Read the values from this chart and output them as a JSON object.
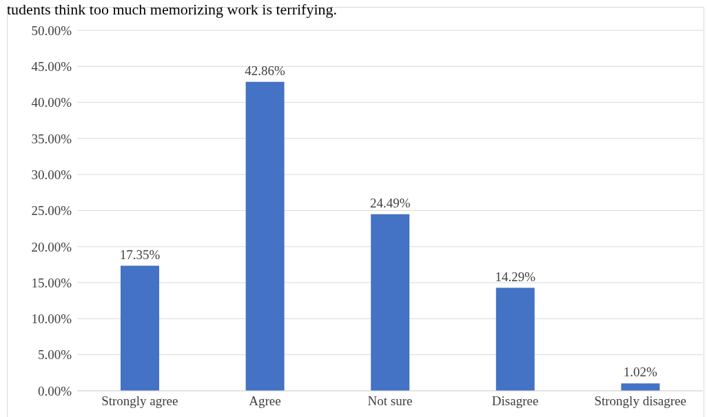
{
  "chart_data": {
    "type": "bar",
    "title": "tudents think too much memorizing work is terrifying.",
    "categories": [
      "Strongly agree",
      "Agree",
      "Not sure",
      "Disagree",
      "Strongly disagree"
    ],
    "values": [
      17.35,
      42.86,
      24.49,
      14.29,
      1.02
    ],
    "value_labels": [
      "17.35%",
      "42.86%",
      "24.49%",
      "14.29%",
      "1.02%"
    ],
    "color": "#4472c4",
    "ylim": [
      0,
      50
    ],
    "yticks": [
      {
        "value": 0,
        "label": "0.00%"
      },
      {
        "value": 5,
        "label": "5.00%"
      },
      {
        "value": 10,
        "label": "10.00%"
      },
      {
        "value": 15,
        "label": "15.00%"
      },
      {
        "value": 20,
        "label": "20.00%"
      },
      {
        "value": 25,
        "label": "25.00%"
      },
      {
        "value": 30,
        "label": "30.00%"
      },
      {
        "value": 35,
        "label": "35.00%"
      },
      {
        "value": 40,
        "label": "40.00%"
      },
      {
        "value": 45,
        "label": "45.00%"
      },
      {
        "value": 50,
        "label": "50.00%"
      }
    ],
    "grid": "y",
    "legend": false
  }
}
